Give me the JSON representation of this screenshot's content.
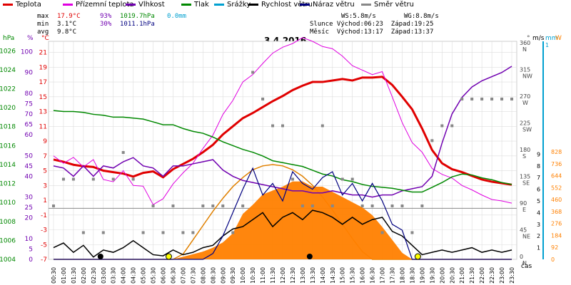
{
  "legend": [
    {
      "label": "Teplota",
      "color": "#e00000"
    },
    {
      "label": "Přízemní teplota",
      "color": "#e000e0"
    },
    {
      "label": "Vlhkost",
      "color": "#7000b0"
    },
    {
      "label": "Tlak",
      "color": "#008800"
    },
    {
      "label": "Srážky",
      "color": "#00a0d0"
    },
    {
      "label": "Rychlost větru",
      "color": "#000000"
    },
    {
      "label": "Náraz větru",
      "color": "#000080"
    },
    {
      "label": "Směr větru",
      "color": "#888888"
    }
  ],
  "stats": {
    "max_label": "max",
    "max_temp": "17.9°C",
    "max_hum": "93%",
    "max_press": "1019.7hPa",
    "max_rain": "0.0mm",
    "min_label": "min",
    "min_temp": "3.1°C",
    "min_hum": "30%",
    "min_press": "1011.1hPa",
    "avg_label": "avg",
    "avg_temp": "9.8°C"
  },
  "wind_stats": {
    "ws": "WS:5.8m/s",
    "wg": "WG:8.8m/s"
  },
  "sun": {
    "line": "Slunce Východ:06:23  Západ:19:25"
  },
  "moon": {
    "line": "Měsíc  Východ:13:17  Západ:13:37"
  },
  "chart_data": {
    "type": "line",
    "title": "3.4.2016",
    "xlabel": "čas",
    "x": [
      "00:30",
      "01:00",
      "01:30",
      "02:00",
      "02:30",
      "03:00",
      "03:30",
      "04:00",
      "04:30",
      "05:00",
      "05:30",
      "06:00",
      "06:30",
      "07:00",
      "07:30",
      "08:00",
      "08:30",
      "09:00",
      "09:30",
      "10:00",
      "10:30",
      "11:00",
      "11:30",
      "12:00",
      "12:30",
      "13:00",
      "13:30",
      "14:00",
      "14:30",
      "15:00",
      "15:30",
      "16:00",
      "16:30",
      "17:00",
      "17:30",
      "18:00",
      "18:30",
      "19:00",
      "19:30",
      "20:00",
      "20:30",
      "21:00",
      "21:30",
      "22:00",
      "22:30",
      "23:00",
      "23:30"
    ],
    "axes": {
      "pressure": {
        "label": "hPa",
        "ticks": [
          1004,
          1006,
          1008,
          1010,
          1012,
          1014,
          1016,
          1018,
          1020,
          1022,
          1024,
          1026
        ],
        "color": "#008800"
      },
      "humidity": {
        "label": "%",
        "ticks": [
          0,
          5,
          10,
          20,
          25,
          30,
          40,
          45,
          50,
          60,
          65,
          70,
          75,
          80,
          90,
          100
        ],
        "color": "#7000b0"
      },
      "temperature": {
        "label": "°C",
        "ticks": [
          -7,
          -5,
          -3,
          -1,
          1,
          3,
          5,
          7,
          9,
          11,
          13,
          15,
          17,
          19,
          21
        ],
        "color": "#e00000"
      },
      "direction": {
        "label": "°",
        "ticks": [
          {
            "v": 0,
            "l": "0\nN"
          },
          {
            "v": 45,
            "l": "45\nNE"
          },
          {
            "v": 90,
            "l": "90\nE"
          },
          {
            "v": 135,
            "l": "135\nSE"
          },
          {
            "v": 180,
            "l": "180\nS"
          },
          {
            "v": 225,
            "l": "225\nSW"
          },
          {
            "v": 270,
            "l": "270\nW"
          },
          {
            "v": 315,
            "l": "315\nNW"
          },
          {
            "v": 360,
            "l": "360\nN"
          }
        ]
      },
      "wind": {
        "label": "m/s",
        "ticks": [
          1,
          2,
          3,
          4,
          5,
          6,
          7,
          8,
          9
        ]
      },
      "rain": {
        "label": "mm",
        "ticks": [
          1
        ],
        "color": "#00a0d0"
      },
      "radiation": {
        "label": "W",
        "ticks": [
          0,
          92,
          184,
          276,
          368,
          460,
          552,
          644,
          736,
          828
        ],
        "color": "#ff8000"
      }
    },
    "series": [
      {
        "name": "Teplota",
        "color": "#e00000",
        "axis": "temperature",
        "values": [
          6.5,
          6.2,
          5.8,
          5.6,
          5.5,
          5.0,
          4.8,
          4.6,
          4.2,
          4.7,
          4.9,
          4.1,
          5.2,
          5.9,
          6.6,
          7.5,
          8.5,
          9.9,
          11.0,
          12.1,
          12.8,
          13.6,
          14.4,
          15.1,
          15.9,
          16.5,
          17.0,
          17.0,
          17.2,
          17.4,
          17.2,
          17.6,
          17.6,
          17.7,
          16.6,
          15.0,
          13.3,
          10.7,
          7.8,
          6.0,
          5.2,
          4.8,
          4.3,
          3.8,
          3.5,
          3.3,
          3.1
        ]
      },
      {
        "name": "Přízemní teplota",
        "color": "#e000e0",
        "axis": "temperature",
        "values": [
          7.0,
          6.0,
          6.8,
          5.5,
          6.5,
          3.8,
          3.5,
          5.0,
          3.0,
          2.9,
          0.4,
          1.2,
          3.2,
          4.7,
          6.0,
          8.0,
          9.8,
          12.6,
          14.5,
          17.0,
          18.0,
          19.5,
          20.9,
          21.7,
          22.2,
          23.0,
          22.5,
          21.8,
          21.5,
          20.5,
          19.2,
          18.6,
          18.0,
          18.4,
          15.0,
          11.5,
          8.8,
          7.5,
          5.3,
          4.5,
          4.0,
          3.0,
          2.4,
          1.7,
          1.1,
          0.9,
          0.6
        ]
      },
      {
        "name": "Vlhkost",
        "color": "#7000b0",
        "axis": "humidity",
        "values": [
          45,
          44,
          40,
          45,
          40,
          45,
          44,
          47,
          49,
          45,
          44,
          40,
          45,
          45,
          46,
          47,
          48,
          43,
          40,
          38,
          37,
          36,
          35,
          34,
          33,
          33,
          32,
          32,
          33,
          32,
          31,
          31,
          30,
          31,
          31,
          33,
          34,
          35,
          40,
          56,
          70,
          78,
          83,
          86,
          88,
          90,
          93
        ]
      },
      {
        "name": "Tlak",
        "color": "#008800",
        "axis": "pressure",
        "values": [
          1019.7,
          1019.6,
          1019.6,
          1019.5,
          1019.3,
          1019.2,
          1019.0,
          1019.0,
          1018.9,
          1018.8,
          1018.5,
          1018.2,
          1018.2,
          1017.8,
          1017.5,
          1017.3,
          1016.9,
          1016.4,
          1016.0,
          1015.6,
          1015.3,
          1014.9,
          1014.4,
          1014.2,
          1014.0,
          1013.8,
          1013.4,
          1013.0,
          1012.8,
          1012.4,
          1012.2,
          1011.9,
          1011.7,
          1011.6,
          1011.5,
          1011.3,
          1011.1,
          1011.1,
          1011.6,
          1012.1,
          1012.7,
          1013.0,
          1012.9,
          1012.6,
          1012.4,
          1012.1,
          1011.9
        ]
      },
      {
        "name": "Rychlost větru",
        "color": "#000000",
        "axis": "wind",
        "values": [
          1.0,
          1.4,
          0.6,
          1.2,
          0.2,
          0.8,
          0.6,
          1.0,
          1.6,
          1.0,
          0.4,
          0.3,
          0.8,
          0.4,
          0.6,
          1.0,
          1.2,
          2.0,
          2.6,
          2.8,
          3.4,
          4.0,
          2.8,
          3.6,
          4.0,
          3.4,
          4.2,
          4.0,
          3.6,
          3.0,
          3.6,
          3.0,
          3.4,
          3.6,
          2.4,
          2.0,
          1.2,
          0.4,
          0.6,
          0.8,
          0.6,
          0.8,
          1.0,
          0.6,
          0.8,
          0.6,
          0.8
        ]
      },
      {
        "name": "Náraz větru",
        "color": "#000080",
        "axis": "wind",
        "values": [
          0,
          0,
          0,
          0,
          0,
          0,
          0,
          0,
          0,
          0,
          0,
          0,
          0,
          0,
          0,
          0,
          0.5,
          2.0,
          4.0,
          6.0,
          7.8,
          5.5,
          6.5,
          5.0,
          7.5,
          6.5,
          6.0,
          7.0,
          7.5,
          5.5,
          6.5,
          5.0,
          6.5,
          5.0,
          3.0,
          2.5,
          0,
          0,
          0,
          0,
          0,
          0,
          0,
          0,
          0,
          0,
          0
        ]
      },
      {
        "name": "Směr větru",
        "color": "#888888",
        "axis": "direction",
        "marker": "square",
        "values": [
          90,
          135,
          135,
          45,
          135,
          45,
          135,
          180,
          135,
          45,
          90,
          45,
          90,
          45,
          45,
          90,
          90,
          90,
          45,
          90,
          315,
          270,
          225,
          225,
          135,
          90,
          90,
          225,
          90,
          135,
          135,
          90,
          90,
          45,
          90,
          90,
          45,
          90,
          200,
          225,
          225,
          270,
          270,
          270,
          270,
          270,
          270
        ]
      },
      {
        "name": "Srážky",
        "color": "#00a0d0",
        "axis": "rain",
        "values": [
          0,
          0,
          0,
          0,
          0,
          0,
          0,
          0,
          0,
          0,
          0,
          0,
          0,
          0,
          0,
          0,
          0,
          0,
          0,
          0,
          0,
          0,
          0,
          0,
          0,
          0,
          0,
          0,
          0,
          0,
          0,
          0,
          0,
          0,
          0,
          0,
          0,
          0,
          0,
          0,
          0,
          0,
          0,
          0,
          0,
          0,
          0
        ]
      }
    ],
    "radiation": {
      "name": "radiation",
      "color": "#ff8000",
      "axis": "radiation",
      "values": [
        0,
        0,
        0,
        0,
        0,
        0,
        0,
        0,
        0,
        0,
        0,
        0,
        0,
        20,
        40,
        60,
        90,
        130,
        200,
        350,
        420,
        500,
        530,
        560,
        600,
        600,
        560,
        560,
        520,
        480,
        440,
        400,
        340,
        250,
        150,
        50,
        0,
        0,
        0,
        0,
        0,
        0,
        0,
        0,
        0,
        0,
        0
      ]
    },
    "theoretical_radiation": {
      "color": "#e08000",
      "axis": "radiation",
      "values": [
        0,
        0,
        0,
        0,
        0,
        0,
        0,
        0,
        0,
        0,
        0,
        0,
        0,
        40,
        150,
        260,
        370,
        470,
        560,
        630,
        690,
        720,
        730,
        720,
        690,
        640,
        570,
        480,
        380,
        270,
        160,
        60,
        0,
        0,
        0,
        0,
        0,
        0,
        0,
        0,
        0,
        0,
        0,
        0,
        0,
        0,
        0
      ]
    }
  }
}
